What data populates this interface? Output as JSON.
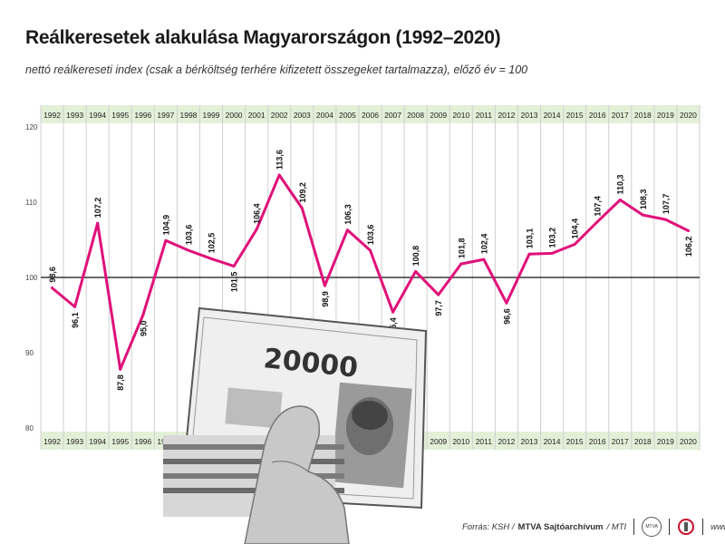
{
  "header": {
    "title": "Reálkeresetek alakulása Magyarországon (1992–2020)",
    "subtitle": "nettó reálkereseti index (csak a bérköltség terhére kifizetett összegeket tartalmazza), előző év = 100"
  },
  "footer": {
    "source_prefix": "Forrás: KSH /",
    "source_bold": "MTVA Sajtóarchívum",
    "source_suffix": "/ MTI",
    "logo_text": "MTVA",
    "website": "www.mti.hu"
  },
  "colors": {
    "line": "#e0107a",
    "band": "#e3f0d8",
    "grid": "#cfcfcf"
  },
  "chart_data": {
    "type": "line",
    "x": [
      1992,
      1993,
      1994,
      1995,
      1996,
      1997,
      1998,
      1999,
      2000,
      2001,
      2002,
      2003,
      2004,
      2005,
      2006,
      2007,
      2008,
      2009,
      2010,
      2011,
      2012,
      2013,
      2014,
      2015,
      2016,
      2017,
      2018,
      2019,
      2020
    ],
    "series": [
      {
        "values": [
          98.6,
          96.1,
          107.2,
          87.8,
          95.0,
          104.9,
          103.6,
          102.5,
          101.5,
          106.4,
          113.6,
          109.2,
          98.9,
          106.3,
          103.6,
          95.4,
          100.8,
          97.7,
          101.8,
          102.4,
          96.6,
          103.1,
          103.2,
          104.4,
          107.4,
          110.3,
          108.3,
          107.7,
          106.2
        ]
      }
    ],
    "value_labels": [
      "98,6",
      "96,1",
      "107,2",
      "87,8",
      "95,0",
      "104,9",
      "103,6",
      "102,5",
      "101,5",
      "106,4",
      "113,6",
      "109,2",
      "98,9",
      "106,3",
      "103,6",
      "95,4",
      "100,8",
      "97,7",
      "101,8",
      "102,4",
      "96,6",
      "103,1",
      "103,2",
      "104,4",
      "107,4",
      "110,3",
      "108,3",
      "107,7",
      "106,2"
    ],
    "x_tick_labels": [
      "1992",
      "1993",
      "1994",
      "1995",
      "1996",
      "1997",
      "1998",
      "1999",
      "2000",
      "2001",
      "2002",
      "2003",
      "2004",
      "2005",
      "2006",
      "2007",
      "2008",
      "2009",
      "2010",
      "2011",
      "2012",
      "2013",
      "2014",
      "2015",
      "2016",
      "2017",
      "2018",
      "2019",
      "2020"
    ],
    "y_ticks": [
      80,
      90,
      100,
      110,
      120
    ],
    "y_tick_labels": [
      "80",
      "90",
      "100",
      "110",
      "120"
    ],
    "ylim": [
      80,
      120
    ],
    "reference_line": 100,
    "grid": true,
    "legend": "none"
  }
}
